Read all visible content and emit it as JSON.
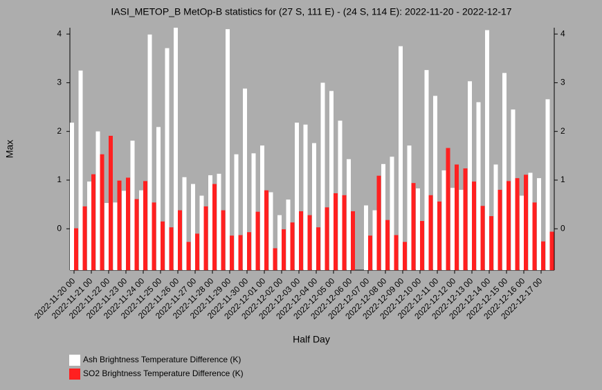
{
  "chart_data": {
    "type": "bar",
    "title": "IASI_METOP_B MetOp-B statistics for (27 S, 111 E) - (24 S, 114 E): 2022-11-20 - 2022-12-17",
    "xlabel": "Half Day",
    "ylabel": "Max",
    "categories": [
      "2022-11-20 00",
      null,
      "2022-11-21 00",
      null,
      "2022-11-22 00",
      null,
      "2022-11-23 00",
      null,
      "2022-11-24 00",
      null,
      "2022-11-25 00",
      null,
      "2022-11-26 00",
      null,
      "2022-11-27 00",
      null,
      "2022-11-28 00",
      null,
      "2022-11-29 00",
      null,
      "2022-11-30 00",
      null,
      "2022-12-01 00",
      null,
      "2022-12-02 00",
      null,
      "2022-12-03 00",
      null,
      "2022-12-04 00",
      null,
      "2022-12-05 00",
      null,
      "2022-12-06 00",
      null,
      "2022-12-07 00",
      null,
      "2022-12-08 00",
      null,
      "2022-12-09 00",
      null,
      "2022-12-10 00",
      null,
      "2022-12-11 00",
      null,
      "2022-12-12 00",
      null,
      "2022-12-13 00",
      null,
      "2022-12-14 00",
      null,
      "2022-12-15 00",
      null,
      "2022-12-16 00",
      null,
      "2022-12-17 00",
      null
    ],
    "series": [
      {
        "name": "Ash Brightness Temperature Difference (K)",
        "color": "#ffffff",
        "values": [
          2.18,
          3.25,
          0.97,
          2.0,
          0.53,
          0.54,
          0.78,
          1.81,
          0.79,
          3.99,
          2.09,
          3.71,
          4.13,
          1.06,
          0.92,
          0.68,
          1.1,
          1.13,
          4.1,
          1.53,
          2.88,
          1.55,
          1.71,
          0.75,
          0.28,
          0.6,
          2.18,
          2.14,
          1.76,
          3.0,
          2.83,
          2.22,
          1.43,
          null,
          0.48,
          0.38,
          1.33,
          1.48,
          3.75,
          1.71,
          0.83,
          3.26,
          2.73,
          1.2,
          0.84,
          0.8,
          3.03,
          2.6,
          4.08,
          1.32,
          3.2,
          2.45,
          0.68,
          1.15,
          1.04,
          2.66
        ]
      },
      {
        "name": "SO2 Brightness Temperature Difference (K)",
        "color": "#ff2020",
        "values": [
          0.01,
          0.46,
          1.12,
          1.53,
          1.91,
          0.99,
          1.05,
          0.61,
          0.98,
          0.54,
          0.15,
          0.03,
          0.38,
          -0.27,
          -0.1,
          0.46,
          0.92,
          0.38,
          -0.14,
          -0.13,
          -0.07,
          0.35,
          0.79,
          -0.4,
          -0.01,
          0.13,
          0.36,
          0.28,
          0.03,
          0.44,
          0.73,
          0.69,
          0.36,
          null,
          -0.14,
          1.09,
          0.18,
          -0.13,
          -0.27,
          0.94,
          0.16,
          0.69,
          0.56,
          1.66,
          1.32,
          1.24,
          0.97,
          0.47,
          0.26,
          0.8,
          0.98,
          1.04,
          1.11,
          0.54,
          -0.26,
          -0.06
        ]
      }
    ],
    "ylim": [
      -0.85,
      4.13
    ],
    "yticks": [
      0,
      1,
      2,
      3,
      4
    ],
    "legend": "bottom-left"
  }
}
